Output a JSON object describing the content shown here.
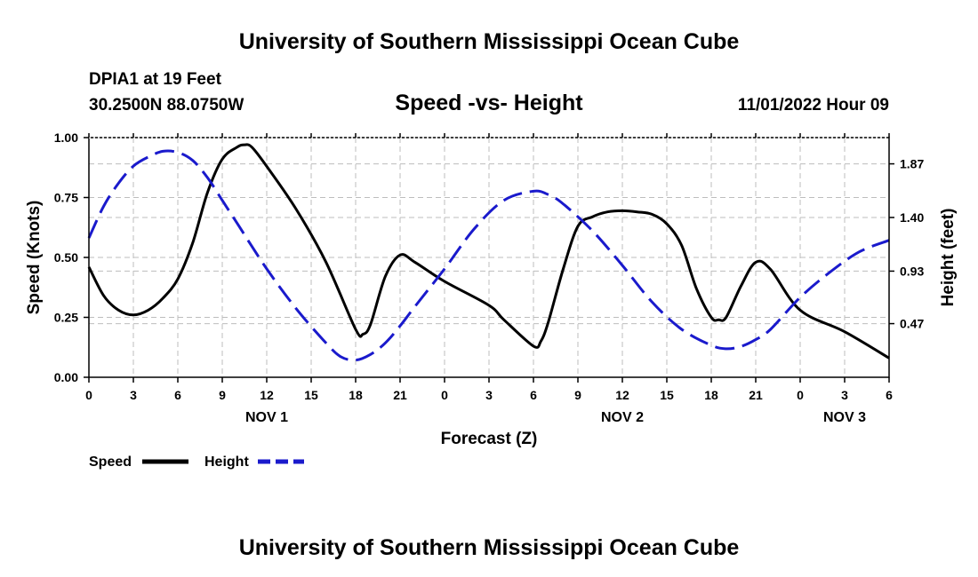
{
  "header": {
    "title": "University of Southern Mississippi Ocean Cube",
    "station": "DPIA1 at 19 Feet",
    "location": "30.2500N  88.0750W",
    "datetime": "11/01/2022 Hour 09",
    "footer_title": "University of Southern Mississippi Ocean Cube"
  },
  "colors": {
    "speed": "#000000",
    "height": "#1a1acc",
    "grid": "#bdbdbd"
  },
  "chart_data": {
    "type": "line",
    "title": "Speed -vs- Height",
    "xlabel": "Forecast (Z)",
    "ylabel_left": "Speed (Knots)",
    "ylabel_right": "Height (feet)",
    "x_range": [
      0,
      54
    ],
    "ylim_left": [
      0,
      1.0
    ],
    "ylim_right": [
      0.0,
      2.1
    ],
    "x_ticks": [
      0,
      3,
      6,
      9,
      12,
      15,
      18,
      21,
      24,
      27,
      30,
      33,
      36,
      39,
      42,
      45,
      48,
      51,
      54
    ],
    "x_tick_labels": [
      "0",
      "3",
      "6",
      "9",
      "12",
      "15",
      "18",
      "21",
      "0",
      "3",
      "6",
      "9",
      "12",
      "15",
      "18",
      "21",
      "0",
      "3",
      "6"
    ],
    "y_left_ticks": [
      0,
      0.25,
      0.5,
      0.75,
      1.0
    ],
    "y_left_tick_labels": [
      "0.00",
      "0.25",
      "0.50",
      "0.75",
      "1.00"
    ],
    "y_right_ticks": [
      0.47,
      0.93,
      1.4,
      1.87
    ],
    "y_right_tick_labels": [
      "0.47",
      "0.93",
      "1.40",
      "1.87"
    ],
    "day_labels": [
      {
        "x": 12,
        "label": "NOV 1"
      },
      {
        "x": 36,
        "label": "NOV 2"
      },
      {
        "x": 51,
        "label": "NOV 3"
      }
    ],
    "series": [
      {
        "name": "Speed",
        "axis": "left",
        "style": "solid",
        "x": [
          0,
          1,
          2,
          3,
          4,
          5,
          6,
          7,
          8,
          9,
          10,
          10.5,
          11,
          12,
          14,
          16,
          18,
          18.5,
          19,
          20,
          21,
          22,
          24,
          27,
          28,
          30,
          30.5,
          31,
          32,
          33,
          34,
          35,
          36,
          37,
          38,
          39,
          40,
          41,
          42,
          42.5,
          43,
          44,
          45,
          46,
          48,
          51,
          54
        ],
        "values": [
          0.46,
          0.34,
          0.28,
          0.26,
          0.28,
          0.33,
          0.41,
          0.56,
          0.77,
          0.91,
          0.96,
          0.97,
          0.96,
          0.88,
          0.7,
          0.48,
          0.2,
          0.18,
          0.22,
          0.42,
          0.51,
          0.48,
          0.4,
          0.3,
          0.24,
          0.13,
          0.15,
          0.23,
          0.45,
          0.63,
          0.67,
          0.69,
          0.695,
          0.69,
          0.68,
          0.64,
          0.55,
          0.37,
          0.25,
          0.24,
          0.25,
          0.38,
          0.48,
          0.45,
          0.28,
          0.19,
          0.08
        ]
      },
      {
        "name": "Height",
        "axis": "right",
        "style": "dashed",
        "x": [
          0,
          1,
          2,
          3,
          4,
          5,
          6,
          7,
          8,
          9,
          10,
          12,
          14,
          16,
          17,
          18,
          19,
          20,
          21,
          22,
          24,
          26,
          28,
          30,
          31,
          32,
          34,
          36,
          38,
          40,
          42,
          43,
          44,
          45,
          46,
          48,
          50,
          52,
          54
        ],
        "values": [
          1.22,
          1.5,
          1.7,
          1.85,
          1.93,
          1.98,
          1.97,
          1.9,
          1.75,
          1.55,
          1.35,
          0.95,
          0.6,
          0.3,
          0.18,
          0.15,
          0.2,
          0.3,
          0.45,
          0.62,
          0.95,
          1.3,
          1.55,
          1.63,
          1.6,
          1.52,
          1.28,
          0.98,
          0.66,
          0.42,
          0.28,
          0.25,
          0.27,
          0.33,
          0.42,
          0.7,
          0.92,
          1.1,
          1.2
        ]
      }
    ],
    "legend": [
      {
        "name": "Speed",
        "style": "solid"
      },
      {
        "name": "Height",
        "style": "dashed"
      }
    ]
  }
}
